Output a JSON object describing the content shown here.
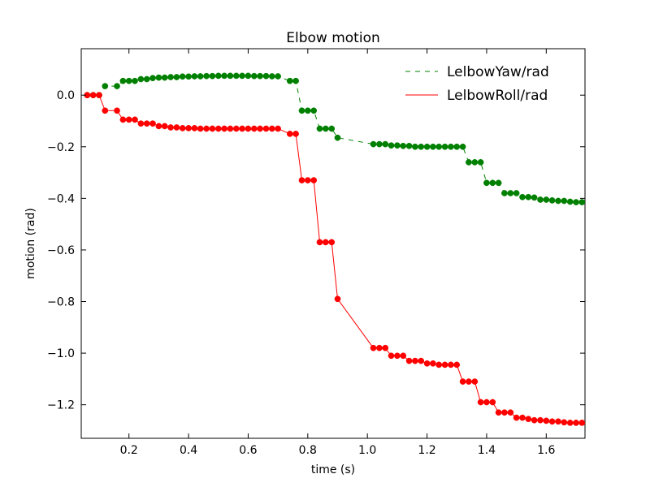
{
  "chart_data": {
    "type": "line",
    "title": "Elbow motion",
    "xlabel": "time (s)",
    "ylabel": "motion (rad)",
    "xlim": [
      0.04,
      1.73
    ],
    "ylim": [
      -1.33,
      0.18
    ],
    "xticks": [
      0.2,
      0.4,
      0.6,
      0.8,
      1.0,
      1.2,
      1.4,
      1.6
    ],
    "xtick_labels": [
      "0.2",
      "0.4",
      "0.6",
      "0.8",
      "1.0",
      "1.2",
      "1.4",
      "1.6"
    ],
    "yticks": [
      0.0,
      -0.2,
      -0.4,
      -0.6,
      -0.8,
      -1.0,
      -1.2
    ],
    "ytick_labels": [
      "0.0",
      "−0.2",
      "−0.4",
      "−0.6",
      "−0.8",
      "−1.0",
      "−1.2"
    ],
    "grid": false,
    "legend_position": "top-right",
    "series": [
      {
        "name": "LelbowYaw/rad",
        "color": "#008000",
        "line_style": "dashed",
        "marker": "circle",
        "x": [
          0.06,
          0.08,
          0.1,
          0.12,
          0.16,
          0.18,
          0.2,
          0.22,
          0.24,
          0.26,
          0.28,
          0.3,
          0.32,
          0.34,
          0.36,
          0.38,
          0.4,
          0.42,
          0.44,
          0.46,
          0.48,
          0.5,
          0.52,
          0.54,
          0.56,
          0.58,
          0.6,
          0.62,
          0.64,
          0.66,
          0.68,
          0.7,
          0.74,
          0.76,
          0.78,
          0.8,
          0.82,
          0.84,
          0.86,
          0.88,
          0.9,
          1.02,
          1.04,
          1.06,
          1.08,
          1.1,
          1.12,
          1.14,
          1.16,
          1.18,
          1.2,
          1.22,
          1.24,
          1.26,
          1.28,
          1.3,
          1.32,
          1.34,
          1.36,
          1.38,
          1.4,
          1.42,
          1.44,
          1.46,
          1.48,
          1.5,
          1.52,
          1.54,
          1.56,
          1.58,
          1.6,
          1.62,
          1.64,
          1.66,
          1.68,
          1.7,
          1.72
        ],
        "y": [
          0.0,
          0.0,
          0.0,
          0.035,
          0.035,
          0.055,
          0.055,
          0.055,
          0.062,
          0.062,
          0.066,
          0.068,
          0.068,
          0.07,
          0.07,
          0.072,
          0.072,
          0.073,
          0.073,
          0.074,
          0.074,
          0.075,
          0.075,
          0.075,
          0.075,
          0.075,
          0.075,
          0.074,
          0.074,
          0.074,
          0.073,
          0.073,
          0.055,
          0.055,
          -0.06,
          -0.06,
          -0.06,
          -0.13,
          -0.13,
          -0.13,
          -0.165,
          -0.19,
          -0.19,
          -0.19,
          -0.195,
          -0.195,
          -0.197,
          -0.197,
          -0.2,
          -0.2,
          -0.2,
          -0.2,
          -0.2,
          -0.2,
          -0.2,
          -0.2,
          -0.2,
          -0.26,
          -0.26,
          -0.26,
          -0.34,
          -0.34,
          -0.34,
          -0.38,
          -0.38,
          -0.38,
          -0.395,
          -0.395,
          -0.397,
          -0.405,
          -0.405,
          -0.408,
          -0.41,
          -0.41,
          -0.413,
          -0.415,
          -0.415
        ]
      },
      {
        "name": "LelbowRoll/rad",
        "color": "#ff0000",
        "line_style": "solid",
        "marker": "circle",
        "x": [
          0.06,
          0.08,
          0.1,
          0.12,
          0.16,
          0.18,
          0.2,
          0.22,
          0.24,
          0.26,
          0.28,
          0.3,
          0.32,
          0.34,
          0.36,
          0.38,
          0.4,
          0.42,
          0.44,
          0.46,
          0.48,
          0.5,
          0.52,
          0.54,
          0.56,
          0.58,
          0.6,
          0.62,
          0.64,
          0.66,
          0.68,
          0.7,
          0.74,
          0.76,
          0.78,
          0.8,
          0.82,
          0.84,
          0.86,
          0.88,
          0.9,
          1.02,
          1.04,
          1.06,
          1.08,
          1.1,
          1.12,
          1.14,
          1.16,
          1.18,
          1.2,
          1.22,
          1.24,
          1.26,
          1.28,
          1.3,
          1.32,
          1.34,
          1.36,
          1.38,
          1.4,
          1.42,
          1.44,
          1.46,
          1.48,
          1.5,
          1.52,
          1.54,
          1.56,
          1.58,
          1.6,
          1.62,
          1.64,
          1.66,
          1.68,
          1.7,
          1.72
        ],
        "y": [
          0.0,
          0.0,
          0.0,
          -0.06,
          -0.06,
          -0.095,
          -0.095,
          -0.095,
          -0.11,
          -0.11,
          -0.11,
          -0.12,
          -0.12,
          -0.125,
          -0.125,
          -0.128,
          -0.128,
          -0.128,
          -0.13,
          -0.13,
          -0.13,
          -0.13,
          -0.13,
          -0.13,
          -0.13,
          -0.13,
          -0.13,
          -0.13,
          -0.13,
          -0.13,
          -0.13,
          -0.13,
          -0.15,
          -0.15,
          -0.33,
          -0.33,
          -0.33,
          -0.57,
          -0.57,
          -0.57,
          -0.79,
          -0.98,
          -0.98,
          -0.98,
          -1.01,
          -1.01,
          -1.01,
          -1.03,
          -1.03,
          -1.03,
          -1.04,
          -1.04,
          -1.045,
          -1.045,
          -1.045,
          -1.045,
          -1.11,
          -1.11,
          -1.11,
          -1.19,
          -1.19,
          -1.19,
          -1.23,
          -1.23,
          -1.23,
          -1.25,
          -1.25,
          -1.255,
          -1.26,
          -1.26,
          -1.262,
          -1.265,
          -1.265,
          -1.268,
          -1.27,
          -1.27,
          -1.27
        ]
      }
    ]
  }
}
